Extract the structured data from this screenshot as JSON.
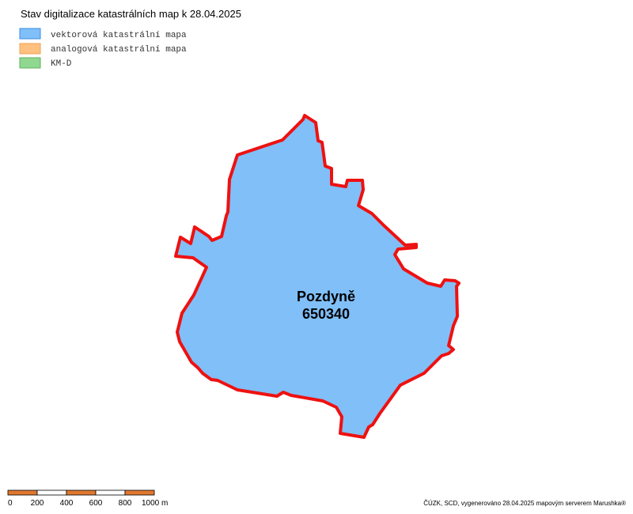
{
  "title": "Stav digitalizace katastrálních map k 28.04.2025",
  "legend": {
    "items": [
      {
        "label": "vektorová katastrální mapa"
      },
      {
        "label": "analogová katastrální mapa"
      },
      {
        "label": "KM-D"
      }
    ]
  },
  "map": {
    "area_name": "Pozdyně",
    "area_code": "650340"
  },
  "scale_bar": {
    "labels": [
      "0",
      "200",
      "400",
      "600",
      "800",
      "1000 m"
    ]
  },
  "credits": "ČÚZK, SCD, vygenerováno 28.04.2025 mapovým serverem Marushka®"
}
